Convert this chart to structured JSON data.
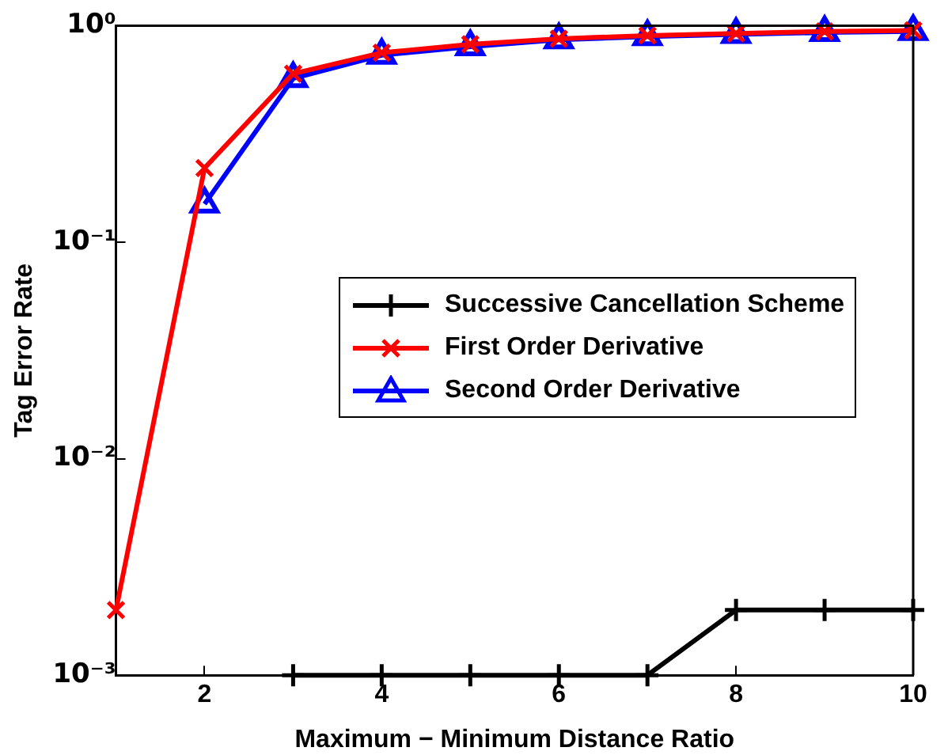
{
  "chart_data": {
    "type": "line",
    "xlabel": "Maximum − Minimum Distance Ratio",
    "ylabel": "Tag Error Rate",
    "x": [
      1,
      2,
      3,
      4,
      5,
      6,
      7,
      8,
      9,
      10
    ],
    "series": [
      {
        "name": "Successive Cancellation Scheme",
        "color": "#000000",
        "marker": "plus",
        "values": [
          null,
          null,
          0.001,
          0.001,
          0.001,
          0.001,
          0.001,
          0.002,
          0.002,
          0.002
        ]
      },
      {
        "name": "First Order Derivative",
        "color": "#ff0000",
        "marker": "cross",
        "values": [
          0.002,
          0.22,
          0.6,
          0.75,
          0.82,
          0.87,
          0.9,
          0.92,
          0.94,
          0.95
        ]
      },
      {
        "name": "Second Order Derivative",
        "color": "#0000ff",
        "marker": "triangle",
        "values": [
          null,
          0.15,
          0.57,
          0.73,
          0.8,
          0.86,
          0.89,
          0.91,
          0.93,
          0.94
        ]
      }
    ],
    "log": "y",
    "xlim": [
      1,
      10
    ],
    "xticks": [
      2,
      4,
      6,
      8,
      10
    ],
    "ylim": [
      0.001,
      1
    ],
    "yticks": [
      {
        "value": 0.001,
        "label": "10⁻³"
      },
      {
        "value": 0.01,
        "label": "10⁻²"
      },
      {
        "value": 0.1,
        "label": "10⁻¹"
      },
      {
        "value": 1,
        "label": "10⁰"
      }
    ],
    "grid": false,
    "legend": "right",
    "line_style": "solid"
  }
}
